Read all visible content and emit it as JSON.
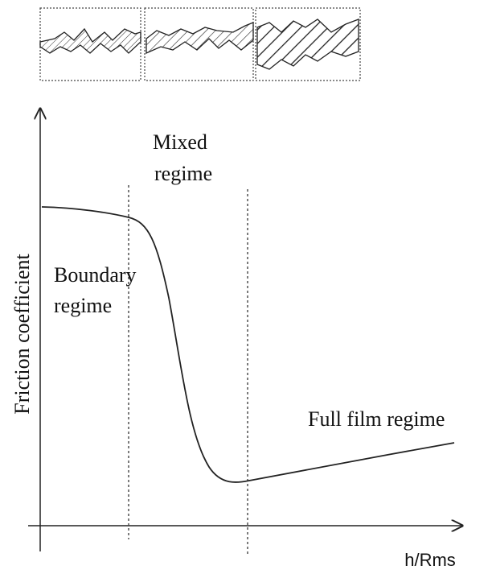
{
  "axes": {
    "y_label": "Friction coefficient",
    "x_label": "h/Rms"
  },
  "regions": [
    {
      "label_lines": [
        "Boundary",
        "regime"
      ]
    },
    {
      "label_lines": [
        "Mixed",
        "regime"
      ]
    },
    {
      "label_lines": [
        "Full film regime"
      ]
    }
  ]
}
